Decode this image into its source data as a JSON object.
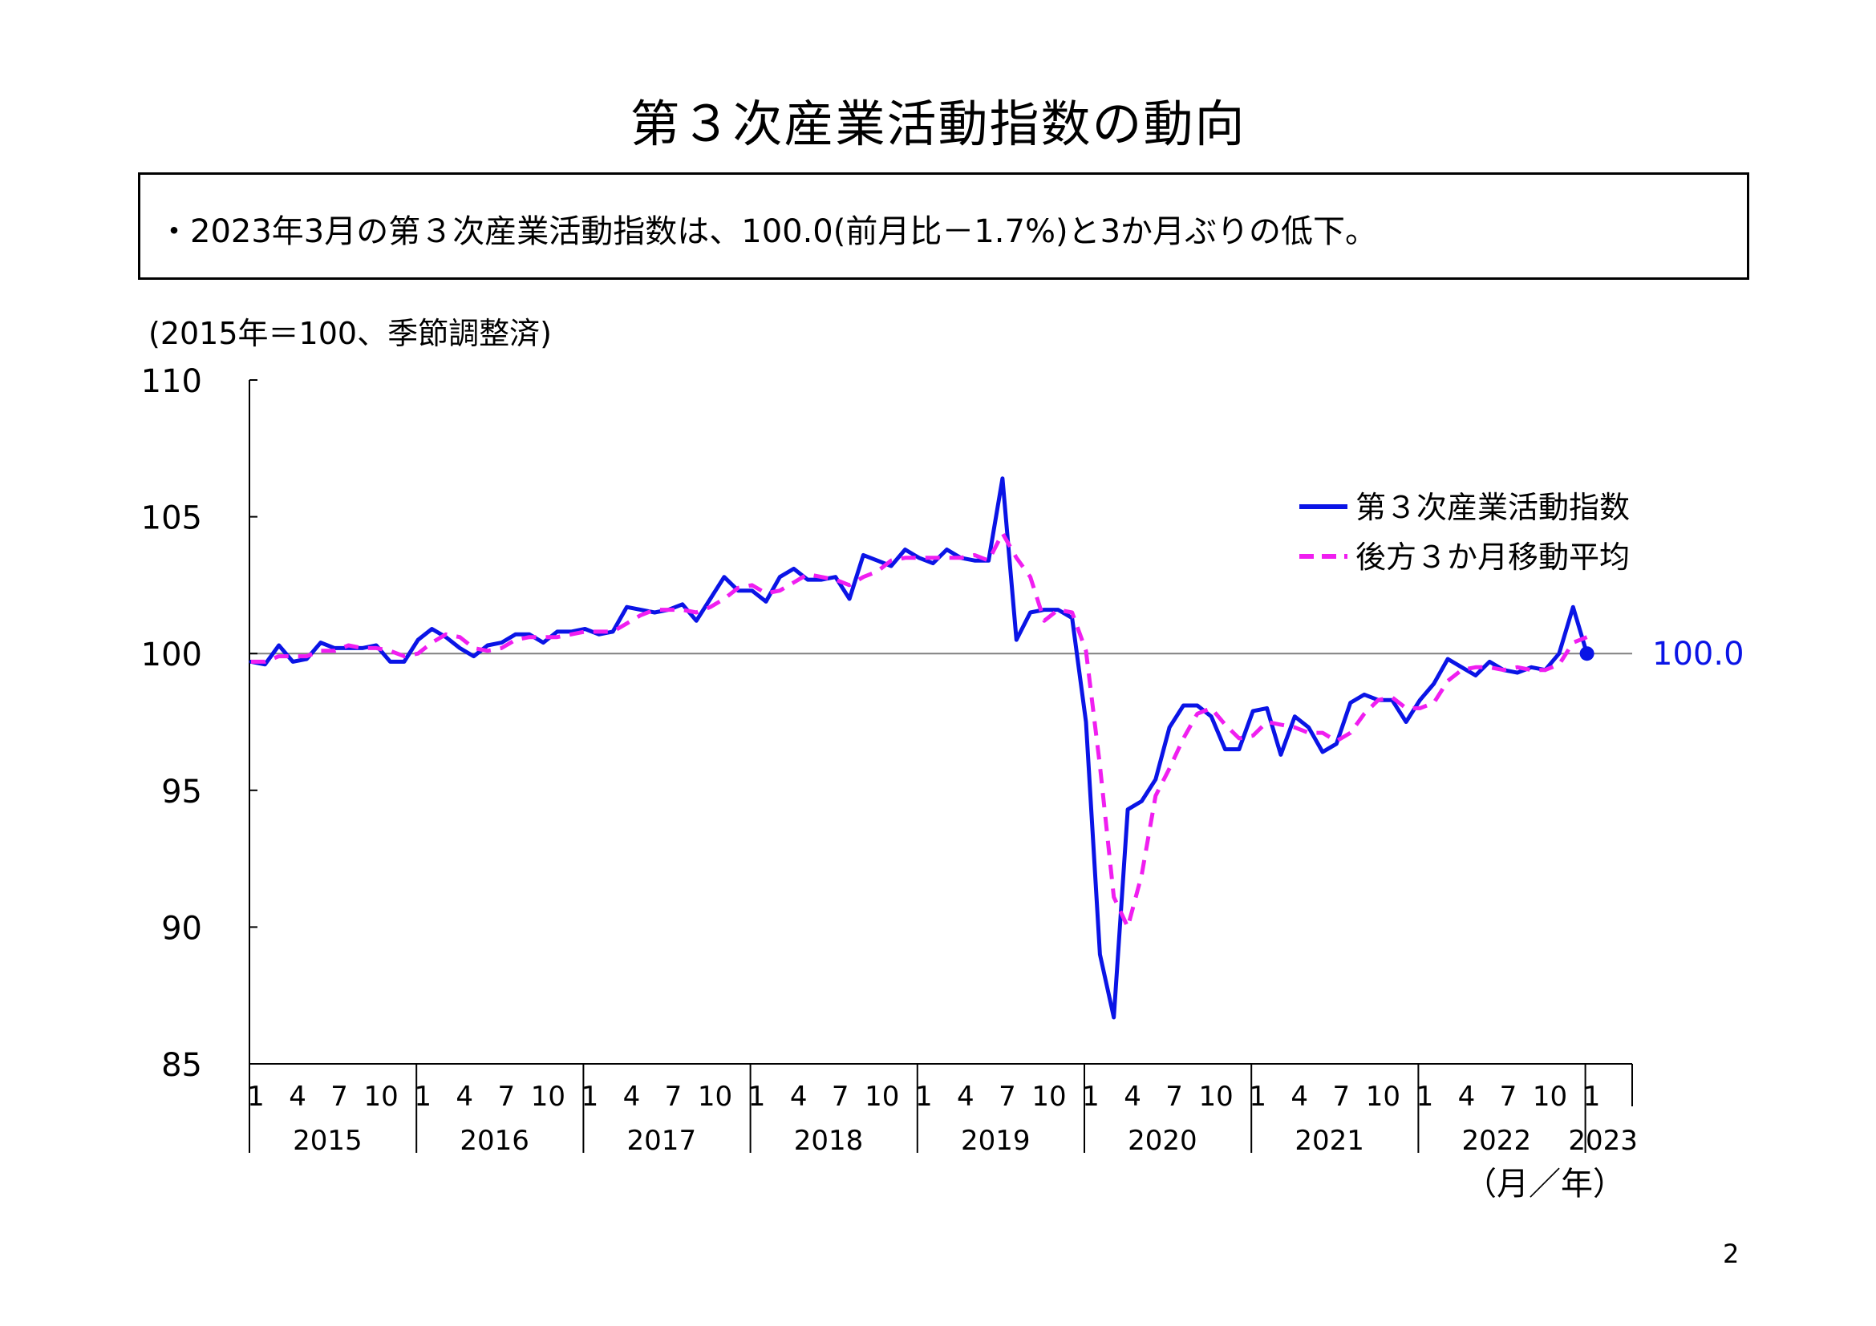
{
  "title": "第３次産業活動指数の動向",
  "summary": "・2023年3月の第３次産業活動指数は、100.0(前月比－1.7%)と3か月ぶりの低下。",
  "unit_note": "(2015年＝100、季節調整済)",
  "page_number": "2",
  "colors": {
    "index": "#0a14e6",
    "moving_average": "#f01ef0",
    "reference_line": "#808080",
    "axis": "#000000"
  },
  "chart_data": {
    "type": "line",
    "ylim": [
      85,
      110
    ],
    "y_ticks": [
      "110",
      "105",
      "100",
      "95",
      "90",
      "85"
    ],
    "reference_line": 100,
    "x_unit_label": "（月／年）",
    "month_ticks": [
      "1",
      "4",
      "7",
      "10"
    ],
    "years": [
      "2015",
      "2016",
      "2017",
      "2018",
      "2019",
      "2020",
      "2021",
      "2022",
      "2023"
    ],
    "end_label": "100.0",
    "series": [
      {
        "name": "第３次産業活動指数",
        "style": "solid",
        "values": [
          99.7,
          99.6,
          100.3,
          99.7,
          99.8,
          100.4,
          100.2,
          100.2,
          100.2,
          100.3,
          99.7,
          99.7,
          100.5,
          100.9,
          100.6,
          100.2,
          99.9,
          100.3,
          100.4,
          100.7,
          100.7,
          100.4,
          100.8,
          100.8,
          100.9,
          100.7,
          100.8,
          101.7,
          101.6,
          101.5,
          101.6,
          101.8,
          101.2,
          102.0,
          102.8,
          102.3,
          102.3,
          101.9,
          102.8,
          103.1,
          102.7,
          102.7,
          102.8,
          102.0,
          103.6,
          103.4,
          103.2,
          103.8,
          103.5,
          103.3,
          103.8,
          103.5,
          103.4,
          103.4,
          106.4,
          100.5,
          101.5,
          101.6,
          101.6,
          101.3,
          97.5,
          89.0,
          86.7,
          94.3,
          94.6,
          95.4,
          97.3,
          98.1,
          98.1,
          97.7,
          96.5,
          96.5,
          97.9,
          98.0,
          96.3,
          97.7,
          97.3,
          96.4,
          96.7,
          98.2,
          98.5,
          98.3,
          98.3,
          97.5,
          98.3,
          98.9,
          99.8,
          99.5,
          99.2,
          99.7,
          99.4,
          99.3,
          99.5,
          99.4,
          100.0,
          101.7,
          100.0
        ]
      },
      {
        "name": "後方３か月移動平均",
        "style": "dashed",
        "values": [
          99.7,
          99.7,
          99.9,
          99.9,
          99.9,
          100.1,
          100.1,
          100.3,
          100.2,
          100.2,
          100.1,
          99.9,
          100.0,
          100.4,
          100.7,
          100.6,
          100.2,
          100.1,
          100.2,
          100.5,
          100.6,
          100.6,
          100.6,
          100.7,
          100.8,
          100.8,
          100.8,
          101.1,
          101.4,
          101.6,
          101.6,
          101.6,
          101.5,
          101.7,
          102.0,
          102.4,
          102.5,
          102.2,
          102.3,
          102.6,
          102.9,
          102.8,
          102.7,
          102.5,
          102.8,
          103.0,
          103.4,
          103.5,
          103.5,
          103.5,
          103.5,
          103.5,
          103.6,
          103.4,
          104.4,
          103.5,
          102.8,
          101.2,
          101.6,
          101.5,
          100.1,
          95.9,
          91.1,
          90.0,
          91.9,
          94.8,
          95.8,
          96.9,
          97.8,
          98.0,
          97.4,
          96.9,
          97.0,
          97.5,
          97.4,
          97.3,
          97.1,
          97.1,
          96.8,
          97.1,
          97.8,
          98.3,
          98.4,
          98.0,
          98.0,
          98.2,
          99.0,
          99.4,
          99.5,
          99.5,
          99.4,
          99.5,
          99.4,
          99.4,
          99.6,
          100.4,
          100.6
        ]
      }
    ]
  }
}
